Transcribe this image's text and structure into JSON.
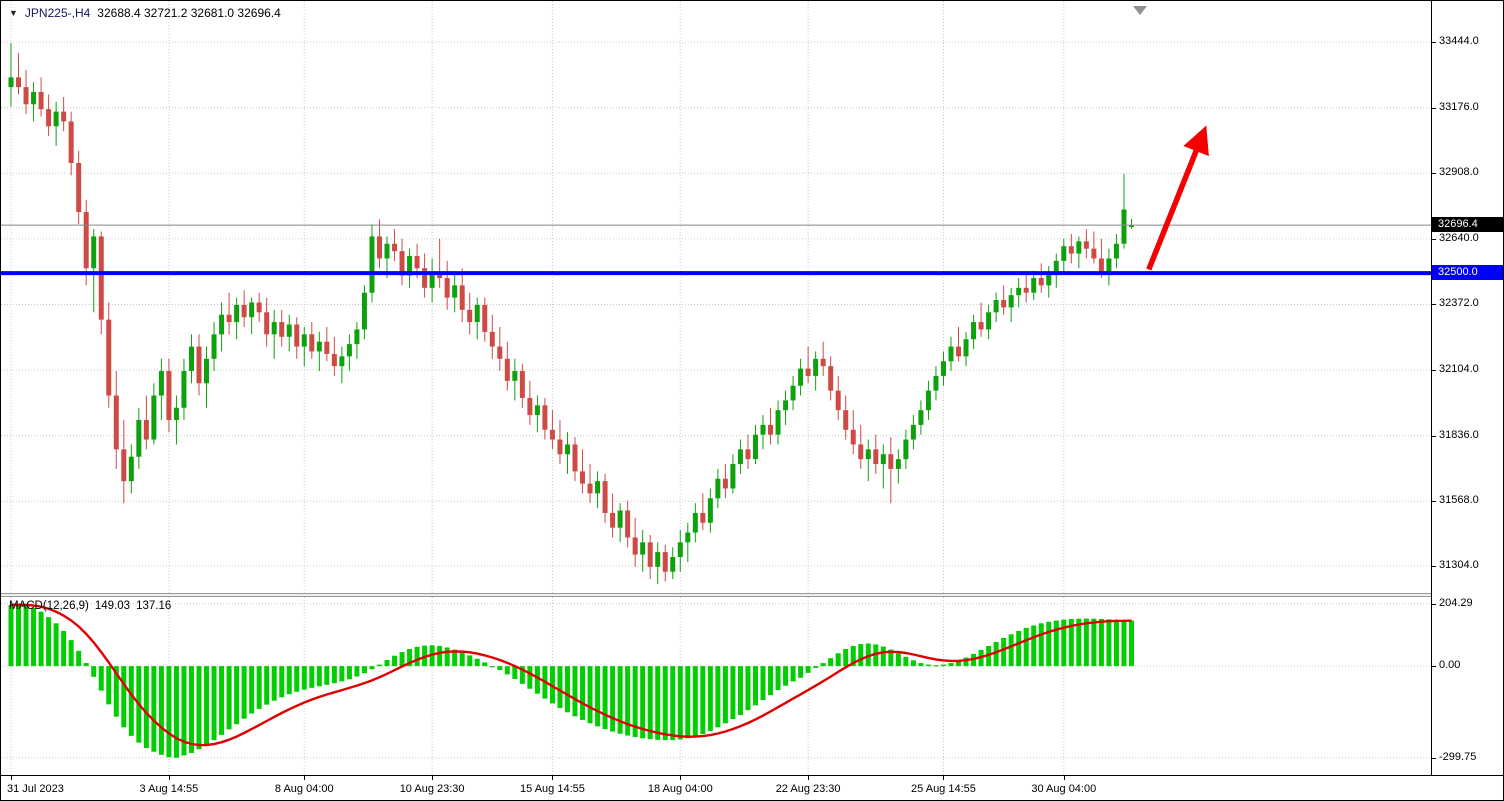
{
  "header": {
    "dropdown_icon": "▼",
    "symbol_period": "JPN225-,H4",
    "ohlc": "32688.4 32721.2 32681.0 32696.4"
  },
  "macd_panel": {
    "label": "MACD(12,26,9)",
    "macd_value": "149.03",
    "signal_value": "137.16"
  },
  "chart_data": {
    "type": "candlestick",
    "title": "JPN225-,H4",
    "title_ohlc": {
      "open": 32688.4,
      "high": 32721.2,
      "low": 32681.0,
      "close": 32696.4
    },
    "ylim": [
      31193,
      33612
    ],
    "price_gridlines": [
      33444,
      33176,
      32908,
      32640,
      32372,
      32104,
      31836,
      31568,
      31304
    ],
    "price_gridline_labels": [
      "33444.0",
      "33176.0",
      "32908.0",
      "32640.0",
      "32372.0",
      "32104.0",
      "31836.0",
      "31568.0",
      "31304.0"
    ],
    "x_ticks": [
      {
        "label": "31 Jul 2023",
        "index": 0
      },
      {
        "label": "3 Aug 14:55",
        "index": 21
      },
      {
        "label": "8 Aug 04:00",
        "index": 39
      },
      {
        "label": "10 Aug 23:30",
        "index": 56
      },
      {
        "label": "15 Aug 14:55",
        "index": 72
      },
      {
        "label": "18 Aug 04:00",
        "index": 89
      },
      {
        "label": "22 Aug 23:30",
        "index": 106
      },
      {
        "label": "25 Aug 14:55",
        "index": 124
      },
      {
        "label": "30 Aug 04:00",
        "index": 140
      }
    ],
    "last_price": 32696.4,
    "last_price_label": "32696.4",
    "hline": {
      "value": 32500,
      "label": "32500.0",
      "color": "#0000FA"
    },
    "arrow": {
      "from_index": 151.3,
      "from_price": 32515,
      "to_index": 158,
      "to_price": 33030,
      "color": "#F40000"
    },
    "candles": [
      [
        33260,
        33440,
        33180,
        33300
      ],
      [
        33300,
        33400,
        33230,
        33260
      ],
      [
        33260,
        33330,
        33150,
        33190
      ],
      [
        33190,
        33280,
        33120,
        33240
      ],
      [
        33240,
        33300,
        33140,
        33170
      ],
      [
        33170,
        33230,
        33060,
        33100
      ],
      [
        33100,
        33200,
        33020,
        33160
      ],
      [
        33160,
        33220,
        33080,
        33120
      ],
      [
        33120,
        33160,
        32900,
        32950
      ],
      [
        32950,
        33000,
        32700,
        32750
      ],
      [
        32750,
        32800,
        32450,
        32520
      ],
      [
        32520,
        32680,
        32340,
        32650
      ],
      [
        32650,
        32670,
        32250,
        32310
      ],
      [
        32310,
        32380,
        31950,
        32000
      ],
      [
        32000,
        32100,
        31700,
        31780
      ],
      [
        31780,
        31900,
        31560,
        31650
      ],
      [
        31650,
        31800,
        31600,
        31750
      ],
      [
        31750,
        31950,
        31700,
        31900
      ],
      [
        31900,
        32000,
        31780,
        31820
      ],
      [
        31820,
        32050,
        31800,
        32000
      ],
      [
        32000,
        32150,
        31900,
        32100
      ],
      [
        32100,
        32150,
        31850,
        31900
      ],
      [
        31900,
        32000,
        31800,
        31950
      ],
      [
        31950,
        32150,
        31900,
        32100
      ],
      [
        32100,
        32250,
        32050,
        32200
      ],
      [
        32200,
        32250,
        32000,
        32050
      ],
      [
        32050,
        32200,
        31950,
        32150
      ],
      [
        32150,
        32300,
        32100,
        32250
      ],
      [
        32250,
        32380,
        32180,
        32330
      ],
      [
        32330,
        32420,
        32250,
        32300
      ],
      [
        32300,
        32400,
        32230,
        32370
      ],
      [
        32370,
        32430,
        32280,
        32320
      ],
      [
        32320,
        32400,
        32250,
        32380
      ],
      [
        32380,
        32420,
        32300,
        32340
      ],
      [
        32340,
        32400,
        32200,
        32250
      ],
      [
        32250,
        32350,
        32150,
        32300
      ],
      [
        32300,
        32350,
        32200,
        32240
      ],
      [
        32240,
        32330,
        32180,
        32290
      ],
      [
        32290,
        32320,
        32150,
        32200
      ],
      [
        32200,
        32280,
        32120,
        32250
      ],
      [
        32250,
        32300,
        32150,
        32180
      ],
      [
        32180,
        32260,
        32100,
        32220
      ],
      [
        32220,
        32280,
        32140,
        32170
      ],
      [
        32170,
        32240,
        32080,
        32120
      ],
      [
        32120,
        32200,
        32050,
        32160
      ],
      [
        32160,
        32250,
        32100,
        32210
      ],
      [
        32210,
        32300,
        32150,
        32270
      ],
      [
        32270,
        32450,
        32230,
        32420
      ],
      [
        32420,
        32700,
        32380,
        32650
      ],
      [
        32650,
        32720,
        32520,
        32560
      ],
      [
        32560,
        32650,
        32480,
        32620
      ],
      [
        32620,
        32680,
        32550,
        32590
      ],
      [
        32590,
        32640,
        32450,
        32490
      ],
      [
        32490,
        32600,
        32440,
        32570
      ],
      [
        32570,
        32620,
        32480,
        32520
      ],
      [
        32520,
        32580,
        32400,
        32440
      ],
      [
        32440,
        32560,
        32380,
        32500
      ],
      [
        32500,
        32640,
        32440,
        32480
      ],
      [
        32480,
        32550,
        32350,
        32400
      ],
      [
        32400,
        32500,
        32340,
        32450
      ],
      [
        32450,
        32520,
        32300,
        32350
      ],
      [
        32350,
        32420,
        32250,
        32300
      ],
      [
        32300,
        32400,
        32230,
        32370
      ],
      [
        32370,
        32400,
        32220,
        32260
      ],
      [
        32260,
        32330,
        32150,
        32200
      ],
      [
        32200,
        32280,
        32100,
        32150
      ],
      [
        32150,
        32220,
        32020,
        32060
      ],
      [
        32060,
        32150,
        31980,
        32100
      ],
      [
        32100,
        32130,
        31950,
        31990
      ],
      [
        31990,
        32060,
        31880,
        31920
      ],
      [
        31920,
        32000,
        31850,
        31960
      ],
      [
        31960,
        31990,
        31820,
        31860
      ],
      [
        31860,
        31940,
        31780,
        31820
      ],
      [
        31820,
        31900,
        31720,
        31760
      ],
      [
        31760,
        31850,
        31680,
        31800
      ],
      [
        31800,
        31830,
        31650,
        31690
      ],
      [
        31690,
        31780,
        31600,
        31640
      ],
      [
        31640,
        31720,
        31560,
        31600
      ],
      [
        31600,
        31690,
        31540,
        31650
      ],
      [
        31650,
        31680,
        31480,
        31520
      ],
      [
        31520,
        31600,
        31420,
        31460
      ],
      [
        31460,
        31560,
        31400,
        31530
      ],
      [
        31530,
        31570,
        31380,
        31420
      ],
      [
        31420,
        31500,
        31300,
        31350
      ],
      [
        31350,
        31450,
        31280,
        31400
      ],
      [
        31400,
        31430,
        31250,
        31300
      ],
      [
        31300,
        31400,
        31230,
        31360
      ],
      [
        31360,
        31390,
        31240,
        31280
      ],
      [
        31280,
        31380,
        31250,
        31340
      ],
      [
        31340,
        31450,
        31280,
        31400
      ],
      [
        31400,
        31480,
        31320,
        31440
      ],
      [
        31440,
        31560,
        31400,
        31520
      ],
      [
        31520,
        31600,
        31450,
        31480
      ],
      [
        31480,
        31620,
        31440,
        31580
      ],
      [
        31580,
        31700,
        31540,
        31660
      ],
      [
        31660,
        31720,
        31580,
        31620
      ],
      [
        31620,
        31760,
        31600,
        31720
      ],
      [
        31720,
        31820,
        31680,
        31780
      ],
      [
        31780,
        31840,
        31700,
        31740
      ],
      [
        31740,
        31880,
        31720,
        31840
      ],
      [
        31840,
        31920,
        31780,
        31880
      ],
      [
        31880,
        31950,
        31800,
        31840
      ],
      [
        31840,
        31980,
        31800,
        31940
      ],
      [
        31940,
        32020,
        31880,
        31980
      ],
      [
        31980,
        32080,
        31940,
        32040
      ],
      [
        32040,
        32150,
        32000,
        32110
      ],
      [
        32110,
        32200,
        32050,
        32080
      ],
      [
        32080,
        32180,
        32020,
        32150
      ],
      [
        32150,
        32220,
        32080,
        32120
      ],
      [
        32120,
        32160,
        31980,
        32020
      ],
      [
        32020,
        32080,
        31900,
        31940
      ],
      [
        31940,
        32000,
        31820,
        31860
      ],
      [
        31860,
        31940,
        31760,
        31800
      ],
      [
        31800,
        31880,
        31700,
        31740
      ],
      [
        31740,
        31820,
        31650,
        31780
      ],
      [
        31780,
        31840,
        31680,
        31720
      ],
      [
        31720,
        31800,
        31620,
        31760
      ],
      [
        31760,
        31830,
        31560,
        31700
      ],
      [
        31700,
        31780,
        31640,
        31740
      ],
      [
        31740,
        31860,
        31700,
        31820
      ],
      [
        31820,
        31920,
        31780,
        31880
      ],
      [
        31880,
        31980,
        31840,
        31940
      ],
      [
        31940,
        32060,
        31900,
        32020
      ],
      [
        32020,
        32120,
        31980,
        32080
      ],
      [
        32080,
        32180,
        32040,
        32140
      ],
      [
        32140,
        32240,
        32100,
        32200
      ],
      [
        32200,
        32280,
        32140,
        32160
      ],
      [
        32160,
        32260,
        32120,
        32230
      ],
      [
        32230,
        32330,
        32190,
        32300
      ],
      [
        32300,
        32380,
        32240,
        32270
      ],
      [
        32270,
        32370,
        32230,
        32340
      ],
      [
        32340,
        32420,
        32300,
        32390
      ],
      [
        32390,
        32450,
        32330,
        32360
      ],
      [
        32360,
        32440,
        32300,
        32410
      ],
      [
        32410,
        32480,
        32360,
        32440
      ],
      [
        32440,
        32500,
        32380,
        32420
      ],
      [
        32420,
        32510,
        32390,
        32480
      ],
      [
        32480,
        32540,
        32420,
        32450
      ],
      [
        32450,
        32530,
        32400,
        32500
      ],
      [
        32500,
        32580,
        32440,
        32550
      ],
      [
        32550,
        32640,
        32500,
        32610
      ],
      [
        32610,
        32660,
        32540,
        32580
      ],
      [
        32580,
        32650,
        32520,
        32630
      ],
      [
        32630,
        32680,
        32560,
        32600
      ],
      [
        32600,
        32670,
        32540,
        32560
      ],
      [
        32560,
        32640,
        32480,
        32500
      ],
      [
        32500,
        32600,
        32450,
        32560
      ],
      [
        32560,
        32660,
        32520,
        32620
      ],
      [
        32620,
        32905,
        32600,
        32760
      ],
      [
        32688.4,
        32721.2,
        32681.0,
        32696.4
      ]
    ],
    "macd": {
      "label": "MACD(12,26,9)",
      "value": 149.03,
      "signal_value": 137.16,
      "signal_period": 9,
      "ylim": [
        -356,
        226
      ],
      "gridlines": [
        204.29,
        0,
        -299.75
      ],
      "gridline_labels": [
        "204.29",
        "0.00",
        "-299.75"
      ],
      "histogram": [
        200,
        204,
        198,
        190,
        178,
        160,
        140,
        115,
        85,
        50,
        10,
        -35,
        -80,
        -125,
        -165,
        -200,
        -228,
        -250,
        -268,
        -280,
        -290,
        -298,
        -299.75,
        -292,
        -284,
        -272,
        -258,
        -242,
        -225,
        -207,
        -190,
        -172,
        -155,
        -140,
        -126,
        -113,
        -102,
        -92,
        -84,
        -77,
        -71,
        -66,
        -61,
        -56,
        -50,
        -43,
        -34,
        -23,
        -10,
        5,
        20,
        34,
        46,
        56,
        63,
        67,
        68,
        66,
        61,
        54,
        45,
        35,
        24,
        12,
        0,
        -13,
        -27,
        -42,
        -58,
        -74,
        -90,
        -106,
        -122,
        -137,
        -151,
        -164,
        -176,
        -187,
        -197,
        -206,
        -214,
        -221,
        -227,
        -232,
        -236,
        -239,
        -241,
        -242,
        -242,
        -240,
        -236,
        -230,
        -222,
        -212,
        -200,
        -187,
        -173,
        -160,
        -144,
        -128,
        -111,
        -95,
        -78,
        -64,
        -50,
        -38,
        -22,
        -6,
        10,
        26,
        42,
        56,
        66,
        72,
        74,
        71,
        64,
        54,
        42,
        30,
        19,
        10,
        5,
        3,
        5,
        10,
        18,
        28,
        40,
        53,
        66,
        79,
        92,
        104,
        115,
        125,
        133,
        140,
        145,
        149,
        152,
        154,
        155,
        155.5,
        155,
        154,
        153,
        152,
        150,
        149.03
      ]
    },
    "time_gridline_indices": [
      0,
      21,
      39,
      56,
      72,
      89,
      106,
      124,
      140
    ],
    "colors": {
      "candle_up": "#0DA10D",
      "candle_down": "#CE4A44",
      "histogram": "#00CE00",
      "signal": "#E00000",
      "grid": "#C9C9C9",
      "hline": "#0000FA",
      "arrow": "#F40000",
      "last_price_line": "#888888",
      "badge_black": "#000000",
      "badge_blue": "#0000FA"
    }
  }
}
